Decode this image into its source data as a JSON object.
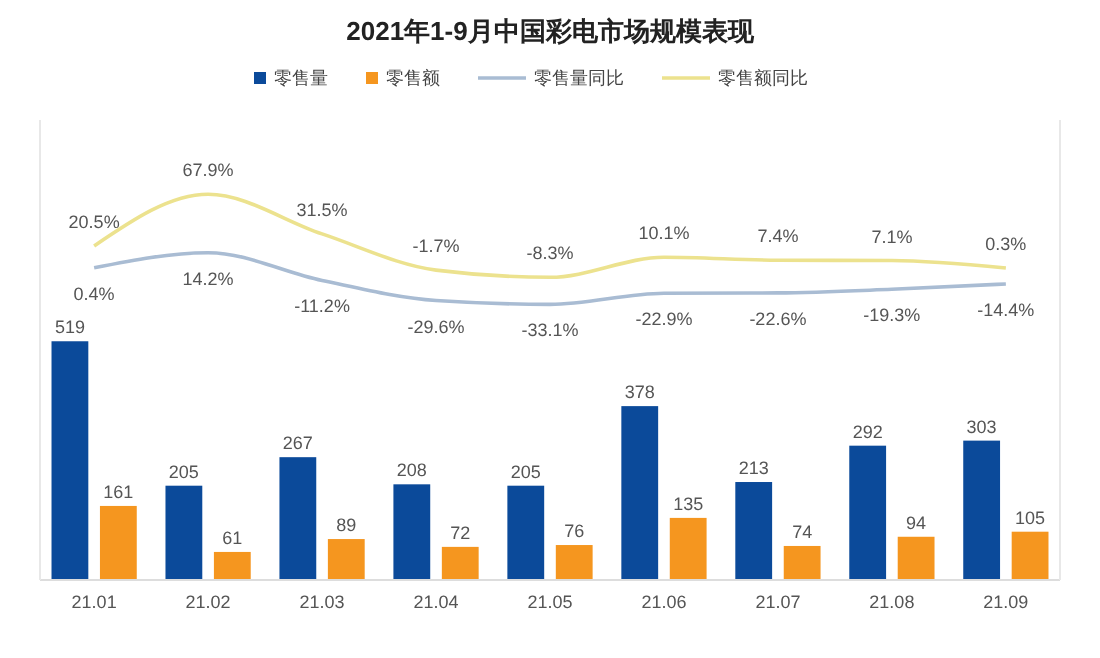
{
  "chart_data": {
    "type": "bar",
    "title": "2021年1-9月中国彩电市场规模表现",
    "categories": [
      "21.01",
      "21.02",
      "21.03",
      "21.04",
      "21.05",
      "21.06",
      "21.07",
      "21.08",
      "21.09"
    ],
    "series": [
      {
        "name": "零售量",
        "color": "#0b4a9a",
        "values": [
          519,
          205,
          267,
          208,
          205,
          378,
          213,
          292,
          303
        ],
        "value_labels": [
          "519",
          "205",
          "267",
          "208",
          "205",
          "378",
          "213",
          "292",
          "303"
        ]
      },
      {
        "name": "零售额",
        "color": "#f5961f",
        "values": [
          161,
          61,
          89,
          72,
          76,
          135,
          74,
          94,
          105
        ],
        "value_labels": [
          "161",
          "61",
          "89",
          "72",
          "76",
          "135",
          "74",
          "94",
          "105"
        ]
      },
      {
        "name": "零售量同比",
        "type": "line",
        "axis": "y2",
        "color": "#a9bcd3",
        "values": [
          0.4,
          14.2,
          -11.2,
          -29.6,
          -33.1,
          -22.9,
          -22.6,
          -19.3,
          -14.4
        ],
        "value_labels": [
          "0.4%",
          "14.2%",
          "-11.2%",
          "-29.6%",
          "-33.1%",
          "-22.9%",
          "-22.6%",
          "-19.3%",
          "-14.4%"
        ]
      },
      {
        "name": "零售额同比",
        "type": "line",
        "axis": "y2",
        "color": "#ece28e",
        "values": [
          20.5,
          67.9,
          31.5,
          -1.7,
          -8.3,
          10.1,
          7.4,
          7.1,
          0.3
        ],
        "value_labels": [
          "20.5%",
          "67.9%",
          "31.5%",
          "-1.7%",
          "-8.3%",
          "10.1%",
          "7.4%",
          "7.1%",
          "0.3%"
        ]
      }
    ],
    "ylim": [
      0,
      1000
    ],
    "y2lim": [
      -286,
      136
    ],
    "tick_labels": "x",
    "legend": "top",
    "marker": "none",
    "line_style": "solid"
  }
}
